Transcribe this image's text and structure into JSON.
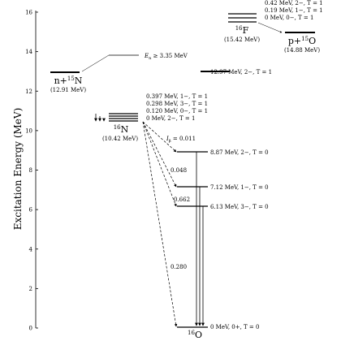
{
  "axis": {
    "label": "Excitation Energy (MeV)",
    "min": 0,
    "max": 16,
    "ticks": [
      "0",
      "2",
      "4",
      "6",
      "8",
      "10",
      "12",
      "14",
      "16"
    ]
  },
  "nuclei": {
    "o16": {
      "name": "16O",
      "mass": "16",
      "symbol": "O",
      "levels": [
        {
          "label": "0 MeV, 0+, T = 0",
          "energy": 0
        },
        {
          "label": "6.13 MeV, 3−, T = 0",
          "energy": 6.13
        },
        {
          "label": "7.12 MeV, 1−, T = 0",
          "energy": 7.12
        },
        {
          "label": "8.87 MeV, 2−, T = 0",
          "energy": 8.87
        },
        {
          "label": "12.97 MeV, 2−, T = 1",
          "energy": 12.97
        }
      ]
    },
    "n16": {
      "mass": "16",
      "symbol": "N",
      "ground": "(10.42 MeV)",
      "levels": [
        {
          "label": "0 MeV, 2−, T = 1",
          "energy": 0
        },
        {
          "label": "0.120 MeV, 0−, T = 1",
          "energy": 0.12
        },
        {
          "label": "0.298 MeV, 3−, T = 1",
          "energy": 0.298
        },
        {
          "label": "0.397 MeV, 1−, T = 1",
          "energy": 0.397
        }
      ]
    },
    "f16": {
      "mass": "16",
      "symbol": "F",
      "ground": "(15.42 MeV)",
      "levels": [
        {
          "label": "0 MeV, 0−, T = 1",
          "energy": 0
        },
        {
          "label": "0.19 MeV, 1−, T = 1",
          "energy": 0.19
        },
        {
          "label": "0.42 MeV, 2−, T = 1",
          "energy": 0.42
        }
      ]
    }
  },
  "thresholds": {
    "n15": {
      "label": "n+15N",
      "prefix": "n+",
      "mass": "15",
      "symbol": "N",
      "energy_text": "(12.91 MeV)",
      "energy": 12.91
    },
    "p15": {
      "label": "p+15O",
      "prefix": "p+",
      "mass": "15",
      "symbol": "O",
      "energy_text": "(14.88 MeV)",
      "energy": 14.88
    }
  },
  "neutron_energy": "En ≥ 3.35 MeV",
  "neutron_energy_sub": "n",
  "beta_decay": {
    "header": "Iβ = 0.011",
    "branches": [
      {
        "to_energy": 8.87,
        "intensity": "0.011"
      },
      {
        "to_energy": 7.12,
        "intensity": "0.048"
      },
      {
        "to_energy": 6.13,
        "intensity": "0.662"
      },
      {
        "to_energy": 0,
        "intensity": "0.280"
      }
    ]
  }
}
